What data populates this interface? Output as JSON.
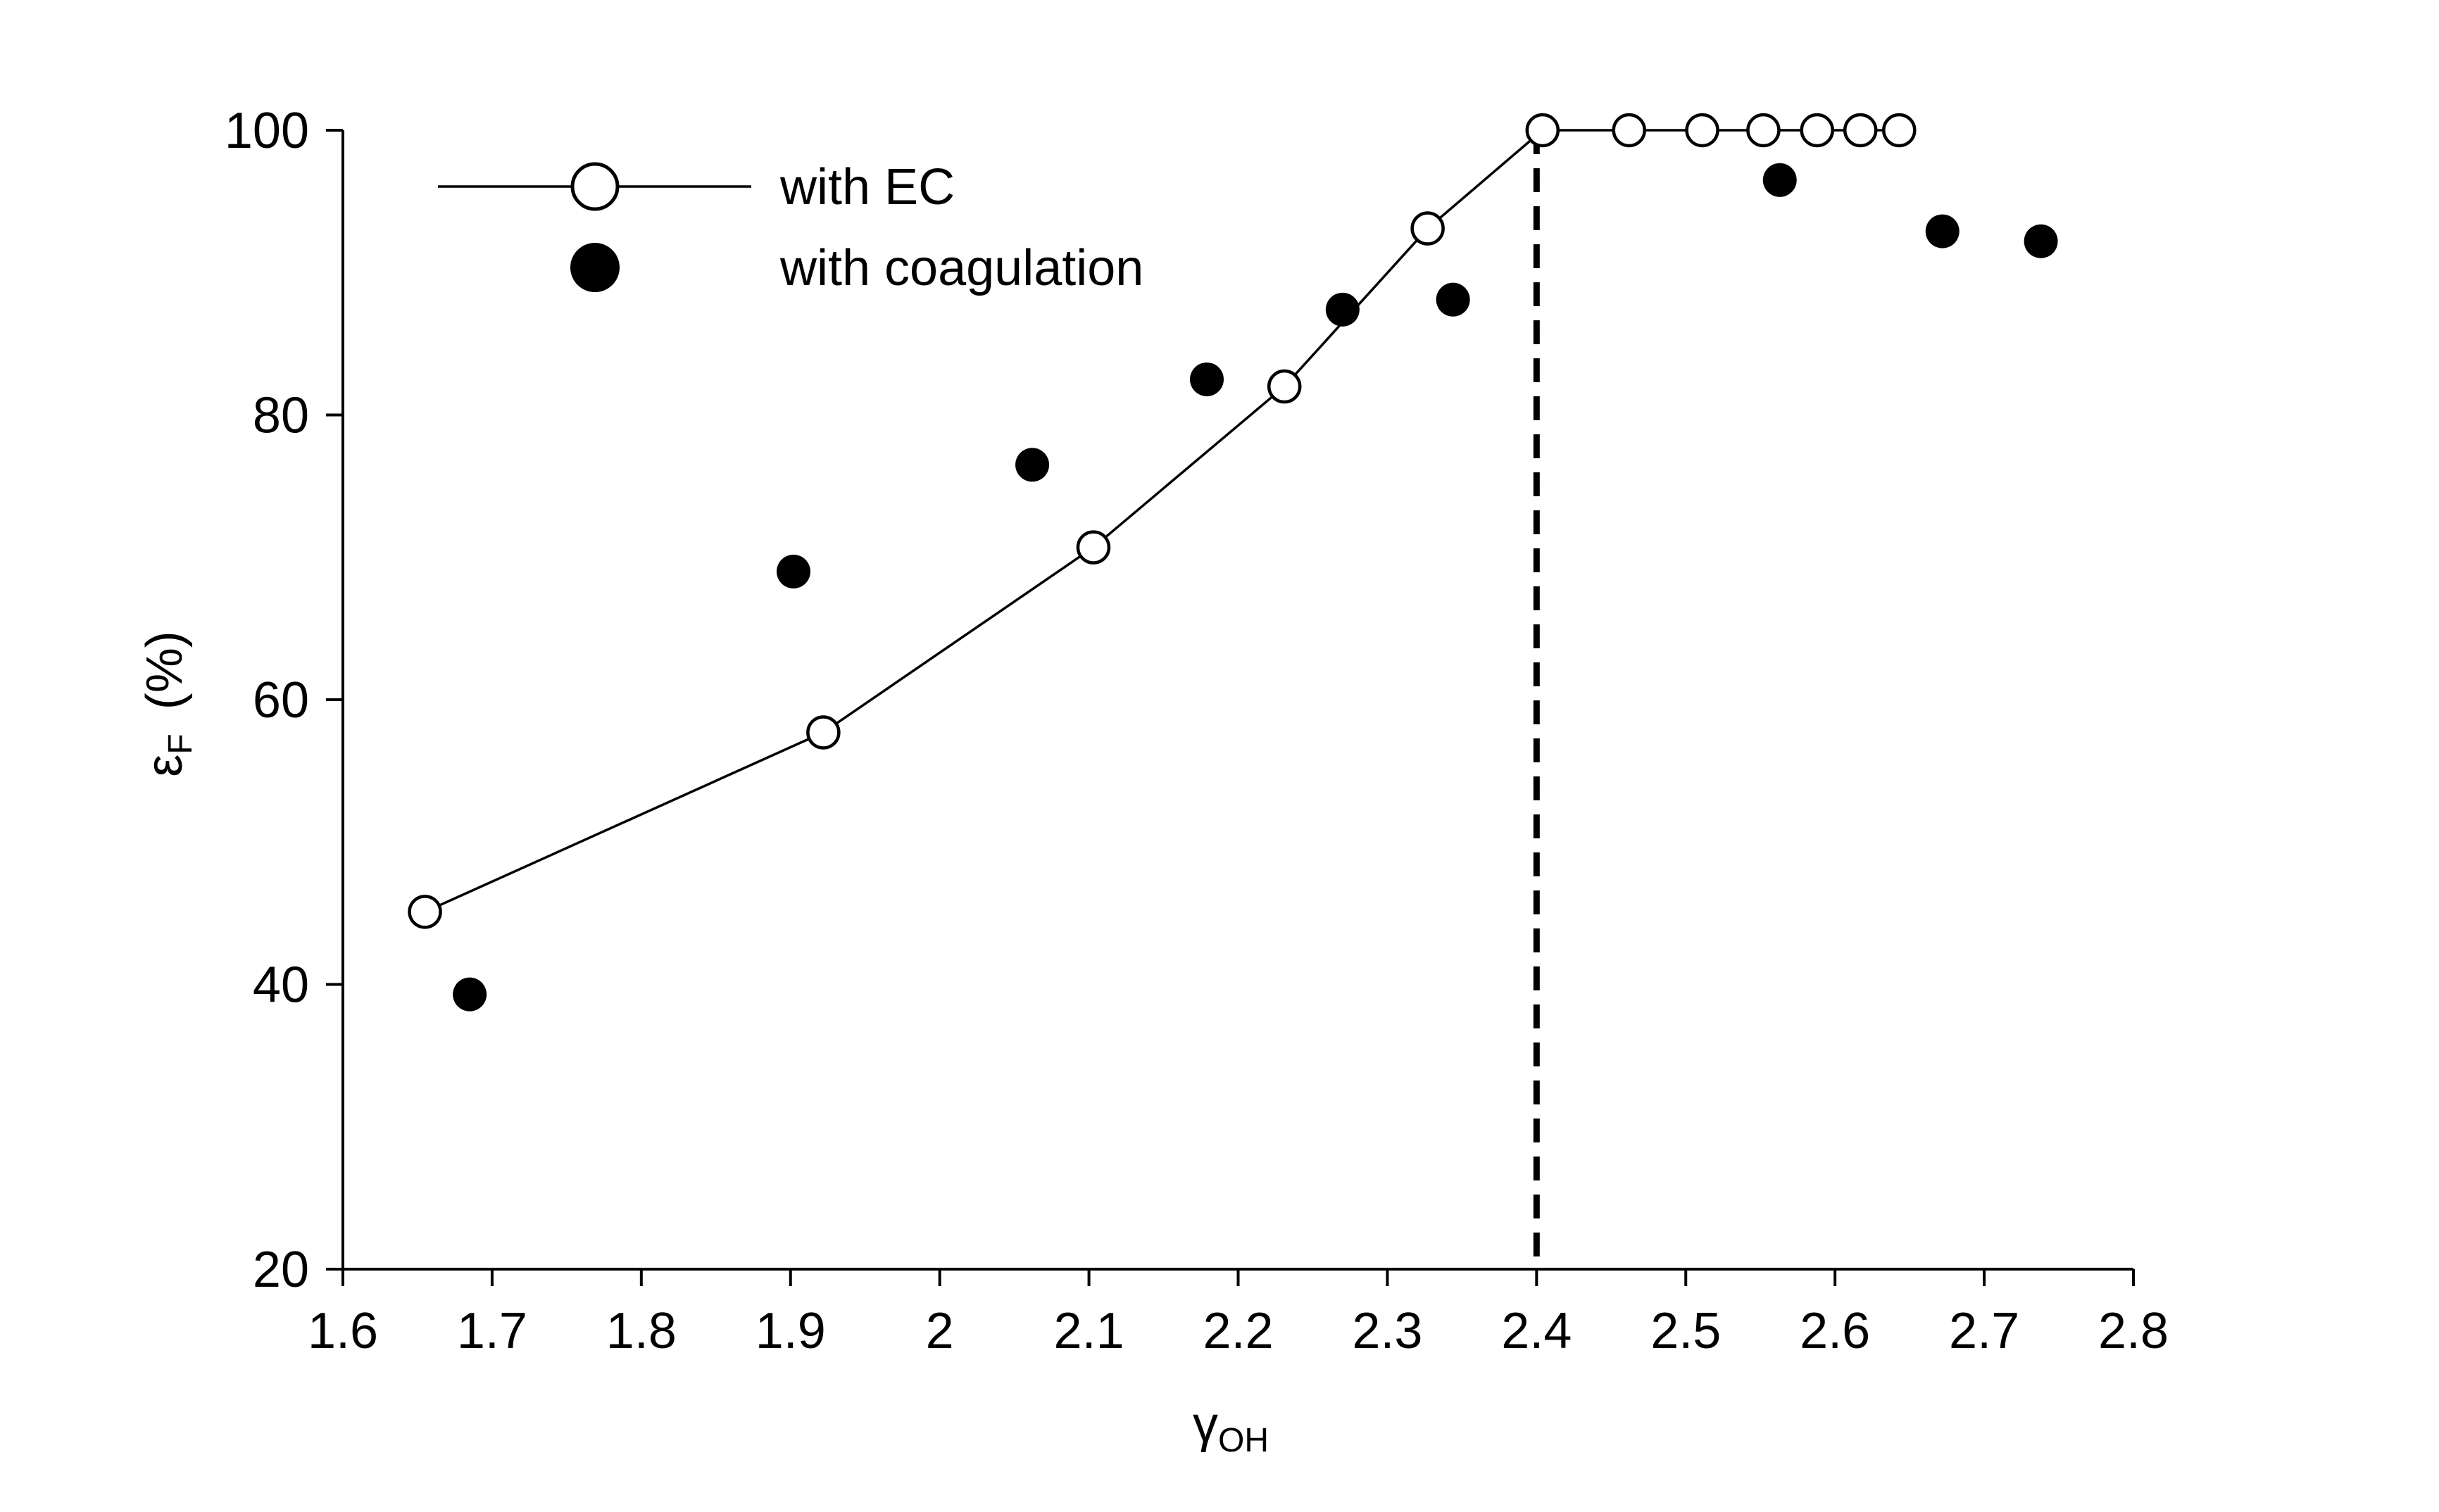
{
  "chart_data": {
    "type": "scatter",
    "title": "",
    "xlabel": {
      "symbol": "γ",
      "subscript": "OH"
    },
    "ylabel": {
      "symbol": "ε",
      "subscript": "F",
      "unit": "(%)"
    },
    "xlim": [
      1.6,
      2.8
    ],
    "ylim": [
      20,
      100
    ],
    "x_ticks": [
      "1.6",
      "1.7",
      "1.8",
      "1.9",
      "2",
      "2.1",
      "2.2",
      "2.3",
      "2.4",
      "2.5",
      "2.6",
      "2.7",
      "2.8"
    ],
    "y_ticks": [
      "20",
      "40",
      "60",
      "80",
      "100"
    ],
    "grid": false,
    "legend_position": "top-left",
    "reference_line": {
      "x": 2.4,
      "style": "dashed"
    },
    "series": [
      {
        "name": "with EC",
        "marker": "open-circle",
        "line": true,
        "points": [
          {
            "x": 1.655,
            "y": 45.1
          },
          {
            "x": 1.922,
            "y": 57.7
          },
          {
            "x": 2.103,
            "y": 70.7
          },
          {
            "x": 2.231,
            "y": 82.0
          },
          {
            "x": 2.327,
            "y": 93.1
          },
          {
            "x": 2.404,
            "y": 100.0
          },
          {
            "x": 2.462,
            "y": 100.0
          },
          {
            "x": 2.511,
            "y": 100.0
          },
          {
            "x": 2.552,
            "y": 100.0
          },
          {
            "x": 2.588,
            "y": 100.0
          },
          {
            "x": 2.617,
            "y": 100.0
          },
          {
            "x": 2.643,
            "y": 100.0
          }
        ]
      },
      {
        "name": "with coagulation",
        "marker": "filled-circle",
        "line": false,
        "points": [
          {
            "x": 1.685,
            "y": 39.3
          },
          {
            "x": 1.902,
            "y": 69.0
          },
          {
            "x": 2.062,
            "y": 76.5
          },
          {
            "x": 2.179,
            "y": 82.5
          },
          {
            "x": 2.27,
            "y": 87.4
          },
          {
            "x": 2.344,
            "y": 88.1
          },
          {
            "x": 2.563,
            "y": 96.5
          },
          {
            "x": 2.672,
            "y": 92.9
          },
          {
            "x": 2.738,
            "y": 92.2
          }
        ]
      }
    ]
  }
}
